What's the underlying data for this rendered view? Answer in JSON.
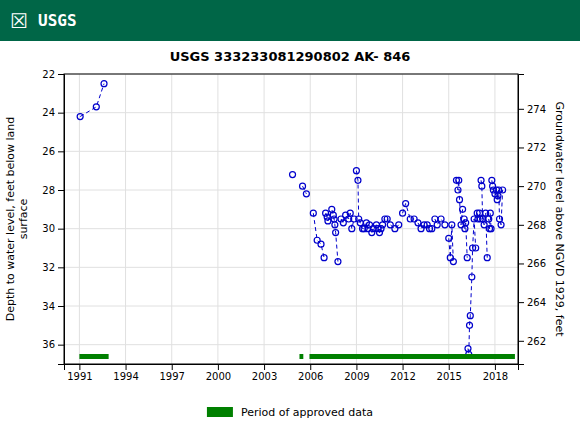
{
  "chart_data": {
    "type": "line",
    "title": "USGS 333233081290802 AK- 846",
    "annotations": [
      "☒",
      "USGS"
    ],
    "ylabel": "Depth to water level, feet below land\nsurface",
    "y2label": "Groundwater level above NGVD 1929, feet",
    "xlim": [
      1990.0,
      2019.5
    ],
    "xticks": [
      1991,
      1994,
      1997,
      2000,
      2003,
      2006,
      2009,
      2012,
      2015,
      2018
    ],
    "ylim": [
      37,
      22
    ],
    "yticks": [
      22,
      24,
      26,
      28,
      30,
      32,
      34,
      36
    ],
    "y2lim": [
      260.8,
      275.8
    ],
    "y2ticks": [
      262,
      264,
      266,
      268,
      270,
      272,
      274
    ],
    "grid": true,
    "legend": "bottom",
    "color": "#0000cc",
    "marker": "circle",
    "line_style": "dashed",
    "series": [
      {
        "x": [
          1991.05,
          1992.1,
          1992.6
        ],
        "values": [
          24.2,
          23.7,
          22.5
        ]
      },
      {
        "x": [
          2004.85
        ],
        "values": [
          27.2
        ]
      },
      {
        "x": [
          2005.5,
          2005.75
        ],
        "values": [
          27.8,
          28.2
        ]
      },
      {
        "x": [
          2006.2,
          2006.45,
          2006.7,
          2006.9
        ],
        "values": [
          29.2,
          30.6,
          30.8,
          31.5
        ]
      },
      {
        "x": [
          2007.0,
          2007.1,
          2007.15,
          2007.4,
          2007.5,
          2007.55,
          2007.6,
          2007.65,
          2007.8
        ],
        "values": [
          29.2,
          29.4,
          29.6,
          29.0,
          29.3,
          29.5,
          29.8,
          30.2,
          31.7
        ]
      },
      {
        "x": [
          2008.0,
          2008.15,
          2008.3,
          2008.5,
          2008.6,
          2008.7,
          2008.85
        ],
        "values": [
          29.5,
          29.7,
          29.3,
          29.5,
          29.2,
          30.0,
          29.5
        ]
      },
      {
        "x": [
          2009.0,
          2009.1,
          2009.15,
          2009.25,
          2009.4,
          2009.5,
          2009.65,
          2009.75,
          2009.85
        ],
        "values": [
          27.0,
          27.5,
          29.5,
          29.7,
          30.0,
          30.0,
          29.7,
          30.0,
          29.8
        ]
      },
      {
        "x": [
          2010.0,
          2010.1,
          2010.3,
          2010.4,
          2010.5,
          2010.6,
          2010.7,
          2010.85
        ],
        "values": [
          30.2,
          30.0,
          29.8,
          30.0,
          30.2,
          30.0,
          29.8,
          29.5
        ]
      },
      {
        "x": [
          2011.0,
          2011.2,
          2011.5,
          2011.75
        ],
        "values": [
          29.5,
          29.8,
          30.0,
          29.8
        ]
      },
      {
        "x": [
          2012.0,
          2012.2,
          2012.5,
          2012.75
        ],
        "values": [
          29.2,
          28.7,
          29.5,
          29.5
        ]
      },
      {
        "x": [
          2013.0,
          2013.2,
          2013.4,
          2013.6,
          2013.75,
          2013.9
        ],
        "values": [
          29.7,
          30.0,
          29.8,
          29.8,
          30.0,
          30.0
        ]
      },
      {
        "x": [
          2014.1,
          2014.25,
          2014.5,
          2014.75
        ],
        "values": [
          29.5,
          29.8,
          29.5,
          29.8
        ]
      },
      {
        "x": [
          2015.0,
          2015.1,
          2015.2,
          2015.3
        ],
        "values": [
          30.5,
          31.5,
          29.8,
          31.7
        ]
      },
      {
        "x": [
          2015.5,
          2015.6,
          2015.65,
          2015.7,
          2015.8,
          2015.9
        ],
        "values": [
          27.5,
          28.0,
          27.5,
          28.5,
          29.8,
          29.0
        ]
      },
      {
        "x": [
          2016.0,
          2016.05,
          2016.1,
          2016.2
        ],
        "values": [
          29.5,
          30.0,
          29.7,
          31.5
        ]
      },
      {
        "x": [
          2016.25,
          2016.3,
          2016.35,
          2016.4,
          2016.5,
          2016.55,
          2016.65,
          2016.75
        ],
        "values": [
          36.2,
          36.5,
          35.0,
          34.5,
          32.5,
          31.0,
          29.5,
          31.0
        ]
      },
      {
        "x": [
          2016.85,
          2016.9,
          2017.0,
          2017.05
        ],
        "values": [
          29.2,
          29.5,
          29.2,
          29.5
        ]
      },
      {
        "x": [
          2017.1,
          2017.15,
          2017.2,
          2017.3,
          2017.4,
          2017.5
        ],
        "values": [
          27.5,
          27.8,
          29.5,
          29.8,
          29.2,
          31.5
        ]
      },
      {
        "x": [
          2017.6,
          2017.65,
          2017.7,
          2017.75
        ],
        "values": [
          29.5,
          30.0,
          29.2,
          30.0
        ]
      },
      {
        "x": [
          2017.8,
          2017.85,
          2017.9
        ],
        "values": [
          27.5,
          27.8,
          28.0
        ]
      },
      {
        "x": [
          2018.0,
          2018.1,
          2018.15,
          2018.2,
          2018.25,
          2018.3,
          2018.4,
          2018.5
        ],
        "values": [
          28.2,
          28.0,
          28.5,
          28.3,
          28.0,
          29.5,
          29.8,
          28.0
        ]
      }
    ],
    "approved_periods": {
      "name": "Period of approved data",
      "color": "#008000",
      "periods": [
        [
          1991.0,
          1992.9
        ],
        [
          2005.3,
          2005.55
        ],
        [
          2005.95,
          2019.3
        ]
      ]
    }
  }
}
